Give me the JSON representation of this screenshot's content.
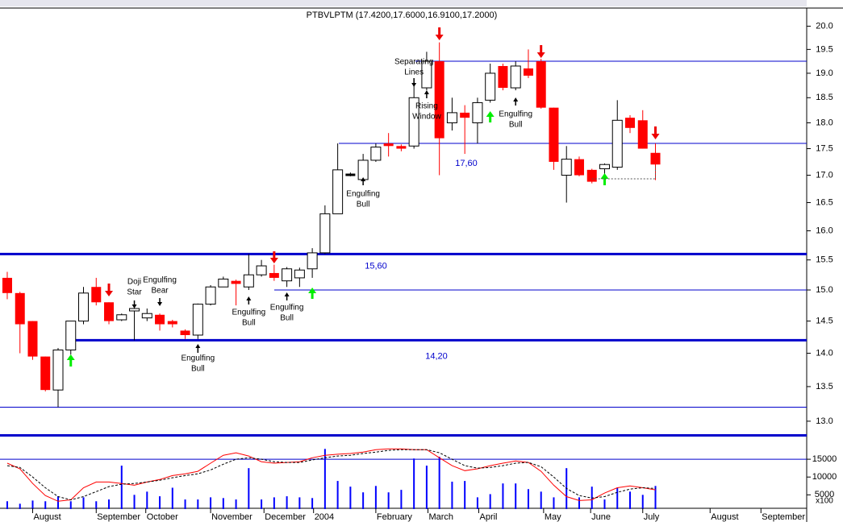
{
  "chart_data": [
    {
      "type": "candlestick",
      "title": "PTBVLPTM (17.4200,17.6000,16.9100,17.2000)",
      "categories": [
        null,
        null,
        null,
        null,
        null,
        null,
        null,
        null,
        null,
        null,
        null,
        null,
        null,
        null,
        null,
        null,
        null,
        null,
        null,
        null,
        null,
        null,
        null,
        null,
        null,
        null,
        null,
        null,
        null,
        null,
        null,
        null,
        null,
        null,
        null,
        null,
        null,
        null,
        null,
        null,
        null,
        null,
        null,
        null,
        null,
        null,
        null,
        null,
        null,
        null,
        null,
        null
      ],
      "open": [
        15.2,
        14.95,
        14.5,
        13.95,
        13.45,
        14.05,
        14.5,
        15.05,
        14.8,
        14.52,
        14.68,
        14.55,
        14.6,
        14.5,
        14.35,
        14.28,
        14.77,
        15.05,
        15.15,
        15.05,
        15.25,
        15.28,
        15.15,
        15.2,
        15.35,
        15.62,
        16.3,
        17.03,
        16.92,
        17.28,
        17.6,
        17.55,
        17.55,
        18.7,
        19.25,
        18.0,
        18.2,
        18.0,
        18.45,
        19.15,
        18.7,
        19.1,
        19.25,
        18.3,
        17.0,
        17.3,
        17.1,
        17.12,
        17.15,
        18.1,
        18.05,
        17.42
      ],
      "high": [
        15.3,
        14.97,
        14.5,
        13.95,
        14.08,
        14.5,
        15.05,
        15.2,
        14.8,
        14.62,
        14.75,
        14.7,
        14.62,
        14.52,
        14.37,
        14.78,
        15.08,
        15.22,
        15.17,
        15.6,
        15.5,
        15.42,
        15.38,
        15.37,
        15.7,
        16.45,
        17.6,
        17.05,
        17.4,
        17.6,
        17.8,
        17.58,
        18.85,
        19.45,
        19.65,
        18.5,
        18.35,
        18.5,
        19.2,
        19.2,
        19.25,
        19.5,
        19.3,
        18.3,
        17.55,
        17.35,
        17.12,
        17.22,
        18.45,
        18.15,
        18.25,
        17.6
      ],
      "low": [
        14.85,
        14.0,
        13.9,
        13.43,
        13.2,
        13.98,
        14.45,
        14.75,
        14.45,
        14.5,
        14.2,
        14.5,
        14.35,
        14.4,
        14.22,
        14.22,
        14.75,
        15.05,
        14.75,
        15.0,
        15.22,
        15.15,
        15.05,
        15.05,
        15.2,
        15.6,
        16.3,
        16.98,
        16.88,
        17.25,
        17.35,
        17.45,
        17.5,
        18.65,
        17.0,
        17.85,
        17.4,
        17.6,
        18.4,
        18.65,
        18.65,
        18.9,
        18.28,
        17.1,
        16.5,
        16.98,
        16.85,
        16.85,
        17.1,
        17.8,
        17.5,
        16.91
      ],
      "close": [
        14.95,
        14.45,
        13.95,
        13.45,
        14.05,
        14.5,
        14.95,
        14.8,
        14.5,
        14.6,
        14.7,
        14.62,
        14.45,
        14.45,
        14.28,
        14.77,
        15.05,
        15.18,
        15.1,
        15.25,
        15.4,
        15.2,
        15.35,
        15.33,
        15.62,
        16.3,
        17.1,
        17.03,
        17.28,
        17.53,
        17.55,
        17.5,
        18.5,
        19.25,
        17.7,
        18.2,
        18.1,
        18.4,
        19.0,
        18.7,
        19.15,
        18.95,
        18.3,
        17.25,
        17.3,
        17.0,
        16.88,
        17.2,
        18.05,
        17.9,
        17.5,
        17.2
      ],
      "up_color": "#ffffff",
      "down_color": "#ff0000",
      "log_scale": true,
      "ylim": [
        12.75,
        20.4
      ],
      "yticks": [
        {
          "value": 13,
          "label": "13.0"
        },
        {
          "value": 13.5,
          "label": "13.5"
        },
        {
          "value": 14,
          "label": "14.0"
        },
        {
          "value": 14.5,
          "label": "14.5"
        },
        {
          "value": 15,
          "label": "15.0"
        },
        {
          "value": 15.5,
          "label": "15.5"
        },
        {
          "value": 16,
          "label": "16.0"
        },
        {
          "value": 16.5,
          "label": "16.5"
        },
        {
          "value": 17,
          "label": "17.0"
        },
        {
          "value": 17.5,
          "label": "17.5"
        },
        {
          "value": 18,
          "label": "18.0"
        },
        {
          "value": 18.5,
          "label": "18.5"
        },
        {
          "value": 19,
          "label": "19.0"
        },
        {
          "value": 19.5,
          "label": "19.5"
        },
        {
          "value": 20,
          "label": "20.0"
        }
      ],
      "xlim": [
        -0.57,
        62.9
      ],
      "hlines": [
        {
          "value": 19.25,
          "color": "#0000cc",
          "width": 1
        },
        {
          "value": 17.6,
          "label": "17,60",
          "color": "#0000cc",
          "width": 1
        },
        {
          "value": 15.6,
          "label": "15,60",
          "color": "#0000cc",
          "width": 3
        },
        {
          "value": 15.0,
          "color": "#0000cc",
          "width": 1
        },
        {
          "value": 14.2,
          "label": "14,20",
          "color": "#0000cc",
          "width": 3
        },
        {
          "value": 13.2,
          "color": "#0000cc",
          "width": 1
        },
        {
          "value": 12.8,
          "color": "#0000cc",
          "width": 3
        }
      ],
      "annotations": [
        [
          "Doji",
          "Star"
        ],
        [
          "Engulfing",
          "Bear"
        ],
        [
          "Engulfing",
          "Bull"
        ],
        [
          "Engulfing",
          "Bull"
        ],
        [
          "Engulfing",
          "Bull"
        ],
        [
          "Engulfing",
          "Bull"
        ],
        [
          "Separating",
          "Lines"
        ],
        [
          "Rising",
          "Window"
        ],
        [
          "Engulfing",
          "Bull"
        ]
      ]
    },
    {
      "type": "bar",
      "categories": [
        null,
        null,
        null,
        null,
        null,
        null,
        null,
        null,
        null,
        null,
        null,
        null,
        null,
        null,
        null,
        null,
        null,
        null,
        null,
        null,
        null,
        null,
        null,
        null,
        null,
        null,
        null,
        null,
        null,
        null,
        null,
        null,
        null,
        null,
        null,
        null,
        null,
        null,
        null,
        null,
        null,
        null,
        null,
        null,
        null,
        null,
        null,
        null,
        null,
        null,
        null,
        null
      ],
      "values": [
        3200,
        2500,
        3400,
        3200,
        4600,
        3200,
        4300,
        3200,
        3700,
        13200,
        5000,
        5900,
        4600,
        7000,
        3700,
        3700,
        4300,
        4100,
        3700,
        12500,
        3700,
        4300,
        4600,
        4300,
        4100,
        17900,
        8900,
        7300,
        5700,
        7500,
        5700,
        6400,
        15200,
        13200,
        15700,
        8700,
        8900,
        4300,
        5200,
        8200,
        8200,
        6600,
        5900,
        4300,
        12500,
        4300,
        7300,
        3700,
        7000,
        5900,
        5000,
        7500
      ],
      "color": "#0000ff",
      "unit_label": "x100",
      "ylim": [
        1000,
        20000
      ],
      "yticks": [
        5000,
        10000,
        15000
      ],
      "xlim": [
        -0.57,
        62.9
      ],
      "xticks": [
        {
          "value": 2,
          "label": "August"
        },
        {
          "value": 7,
          "label": "September"
        },
        {
          "value": 10.9,
          "label": "October"
        },
        {
          "value": 16,
          "label": "November"
        },
        {
          "value": 20.2,
          "label": "December"
        },
        {
          "value": 24.1,
          "label": "2004"
        },
        {
          "value": 29,
          "label": "February"
        },
        {
          "value": 33.1,
          "label": "March"
        },
        {
          "value": 37.1,
          "label": "April"
        },
        {
          "value": 42.2,
          "label": "May"
        },
        {
          "value": 45.9,
          "label": "June"
        },
        {
          "value": 50,
          "label": "July"
        },
        {
          "value": 55.3,
          "label": "August"
        },
        {
          "value": 59.3,
          "label": "September"
        }
      ],
      "lines": [
        {
          "color": "#ff0000",
          "dashed": false,
          "values": [
            13900,
            12300,
            8200,
            4800,
            3200,
            3600,
            7000,
            8600,
            8600,
            8200,
            7700,
            8600,
            9300,
            10400,
            10900,
            11600,
            13900,
            16100,
            16800,
            15900,
            14300,
            13900,
            14100,
            14300,
            15400,
            16100,
            16400,
            16600,
            17000,
            17700,
            17900,
            17900,
            17700,
            17700,
            15400,
            13200,
            11800,
            12300,
            13200,
            13900,
            14500,
            14100,
            11600,
            7700,
            4500,
            3400,
            3600,
            5500,
            7000,
            7500,
            7000,
            6400
          ]
        },
        {
          "color": "#000000",
          "dashed": true,
          "values": [
            13200,
            12700,
            10000,
            7000,
            4500,
            3600,
            4500,
            5900,
            7300,
            8000,
            8200,
            8600,
            9100,
            9800,
            10400,
            10900,
            12000,
            13600,
            15000,
            15400,
            15000,
            14300,
            14100,
            14100,
            14800,
            15400,
            15900,
            16100,
            16600,
            17000,
            17500,
            17700,
            17700,
            17700,
            16800,
            15000,
            13200,
            12500,
            12700,
            13200,
            13900,
            14100,
            12900,
            10000,
            6800,
            4800,
            4100,
            4500,
            5700,
            6600,
            7000,
            6800
          ]
        }
      ]
    }
  ]
}
